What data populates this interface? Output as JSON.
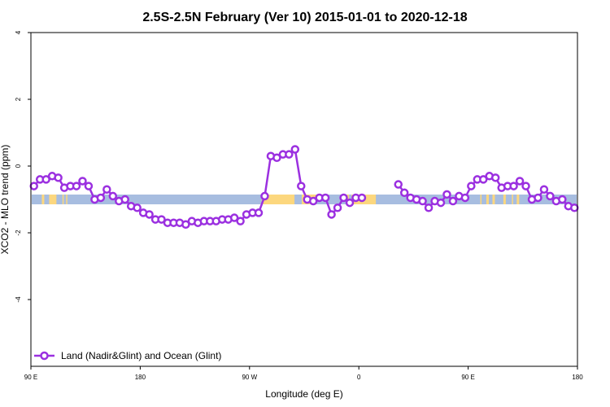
{
  "chart_data": {
    "type": "line",
    "title": "2.5S-2.5N February (Ver 10)   2015-01-01 to 2020-12-18",
    "xlabel": "Longitude (deg E)",
    "ylabel": "XCO2 - MLO trend (ppm)",
    "xlim": [
      90,
      540
    ],
    "ylim": [
      -6,
      4
    ],
    "x_ticks": [
      {
        "value": 90,
        "label": "90 E"
      },
      {
        "value": 180,
        "label": "180"
      },
      {
        "value": 270,
        "label": "90 W"
      },
      {
        "value": 360,
        "label": "0"
      },
      {
        "value": 450,
        "label": "90 E"
      },
      {
        "value": 540,
        "label": "180"
      }
    ],
    "y_ticks": [
      {
        "value": 4,
        "label": "4"
      },
      {
        "value": 2,
        "label": "2"
      },
      {
        "value": 0,
        "label": "0"
      },
      {
        "value": -2,
        "label": "-2"
      },
      {
        "value": -4,
        "label": "-4"
      }
    ],
    "grid": false,
    "legend": {
      "position": "bottom-left"
    },
    "land_ocean_band": {
      "y_center": -1.0,
      "ocean_color": "#a7bde0",
      "land_color": "#fcd77e",
      "land_segments": [
        [
          99,
          101
        ],
        [
          105,
          111
        ],
        [
          116,
          117
        ],
        [
          119,
          120
        ],
        [
          280,
          307
        ],
        [
          313,
          325
        ],
        [
          350,
          352
        ],
        [
          354,
          374
        ],
        [
          460,
          461
        ],
        [
          465,
          467
        ],
        [
          470,
          472
        ],
        [
          479,
          481
        ],
        [
          486,
          487
        ],
        [
          490,
          492
        ]
      ]
    },
    "series": [
      {
        "name": "Land (Nadir&Glint) and Ocean (Glint)",
        "color": "#9b30e0",
        "segments": [
          [
            [
              92.5,
              -0.6
            ],
            [
              97.5,
              -0.4
            ],
            [
              102.5,
              -0.4
            ],
            [
              107.5,
              -0.3
            ],
            [
              112.5,
              -0.35
            ],
            [
              117.5,
              -0.65
            ],
            [
              122.5,
              -0.6
            ],
            [
              127.5,
              -0.6
            ],
            [
              132.5,
              -0.45
            ],
            [
              137.5,
              -0.6
            ],
            [
              142.5,
              -1.0
            ],
            [
              147.5,
              -0.95
            ],
            [
              152.5,
              -0.7
            ],
            [
              157.5,
              -0.9
            ],
            [
              162.5,
              -1.05
            ],
            [
              167.5,
              -1.0
            ],
            [
              172.5,
              -1.2
            ],
            [
              177.5,
              -1.25
            ],
            [
              182.5,
              -1.4
            ],
            [
              187.5,
              -1.45
            ],
            [
              192.5,
              -1.6
            ],
            [
              197.5,
              -1.6
            ],
            [
              202.5,
              -1.7
            ],
            [
              207.5,
              -1.7
            ],
            [
              212.5,
              -1.7
            ],
            [
              217.5,
              -1.75
            ],
            [
              222.5,
              -1.65
            ],
            [
              227.5,
              -1.7
            ],
            [
              232.5,
              -1.65
            ],
            [
              237.5,
              -1.65
            ],
            [
              242.5,
              -1.65
            ],
            [
              247.5,
              -1.6
            ],
            [
              252.5,
              -1.6
            ],
            [
              257.5,
              -1.55
            ],
            [
              262.5,
              -1.65
            ],
            [
              267.5,
              -1.45
            ],
            [
              272.5,
              -1.4
            ],
            [
              277.5,
              -1.4
            ],
            [
              282.5,
              -0.9
            ],
            [
              287.5,
              0.3
            ],
            [
              292.5,
              0.25
            ],
            [
              297.5,
              0.35
            ],
            [
              302.5,
              0.35
            ],
            [
              307.5,
              0.5
            ],
            [
              312.5,
              -0.6
            ],
            [
              317.5,
              -1.0
            ],
            [
              322.5,
              -1.05
            ],
            [
              327.5,
              -0.95
            ],
            [
              332.5,
              -0.95
            ],
            [
              337.5,
              -1.45
            ],
            [
              342.5,
              -1.25
            ],
            [
              347.5,
              -0.95
            ],
            [
              352.5,
              -1.1
            ],
            [
              357.5,
              -0.95
            ],
            [
              362.5,
              -0.95
            ]
          ],
          [
            [
              392.5,
              -0.55
            ],
            [
              397.5,
              -0.8
            ],
            [
              402.5,
              -0.95
            ],
            [
              407.5,
              -1.0
            ],
            [
              412.5,
              -1.05
            ],
            [
              417.5,
              -1.25
            ],
            [
              422.5,
              -1.05
            ],
            [
              427.5,
              -1.1
            ],
            [
              432.5,
              -0.85
            ],
            [
              437.5,
              -1.05
            ],
            [
              442.5,
              -0.9
            ],
            [
              447.5,
              -0.95
            ],
            [
              452.5,
              -0.6
            ],
            [
              457.5,
              -0.4
            ],
            [
              462.5,
              -0.4
            ],
            [
              467.5,
              -0.3
            ],
            [
              472.5,
              -0.35
            ],
            [
              477.5,
              -0.65
            ],
            [
              482.5,
              -0.6
            ],
            [
              487.5,
              -0.6
            ],
            [
              492.5,
              -0.45
            ],
            [
              497.5,
              -0.6
            ],
            [
              502.5,
              -1.0
            ],
            [
              507.5,
              -0.95
            ],
            [
              512.5,
              -0.7
            ],
            [
              517.5,
              -0.9
            ],
            [
              522.5,
              -1.05
            ],
            [
              527.5,
              -1.0
            ],
            [
              532.5,
              -1.2
            ],
            [
              537.5,
              -1.25
            ]
          ]
        ]
      }
    ]
  }
}
